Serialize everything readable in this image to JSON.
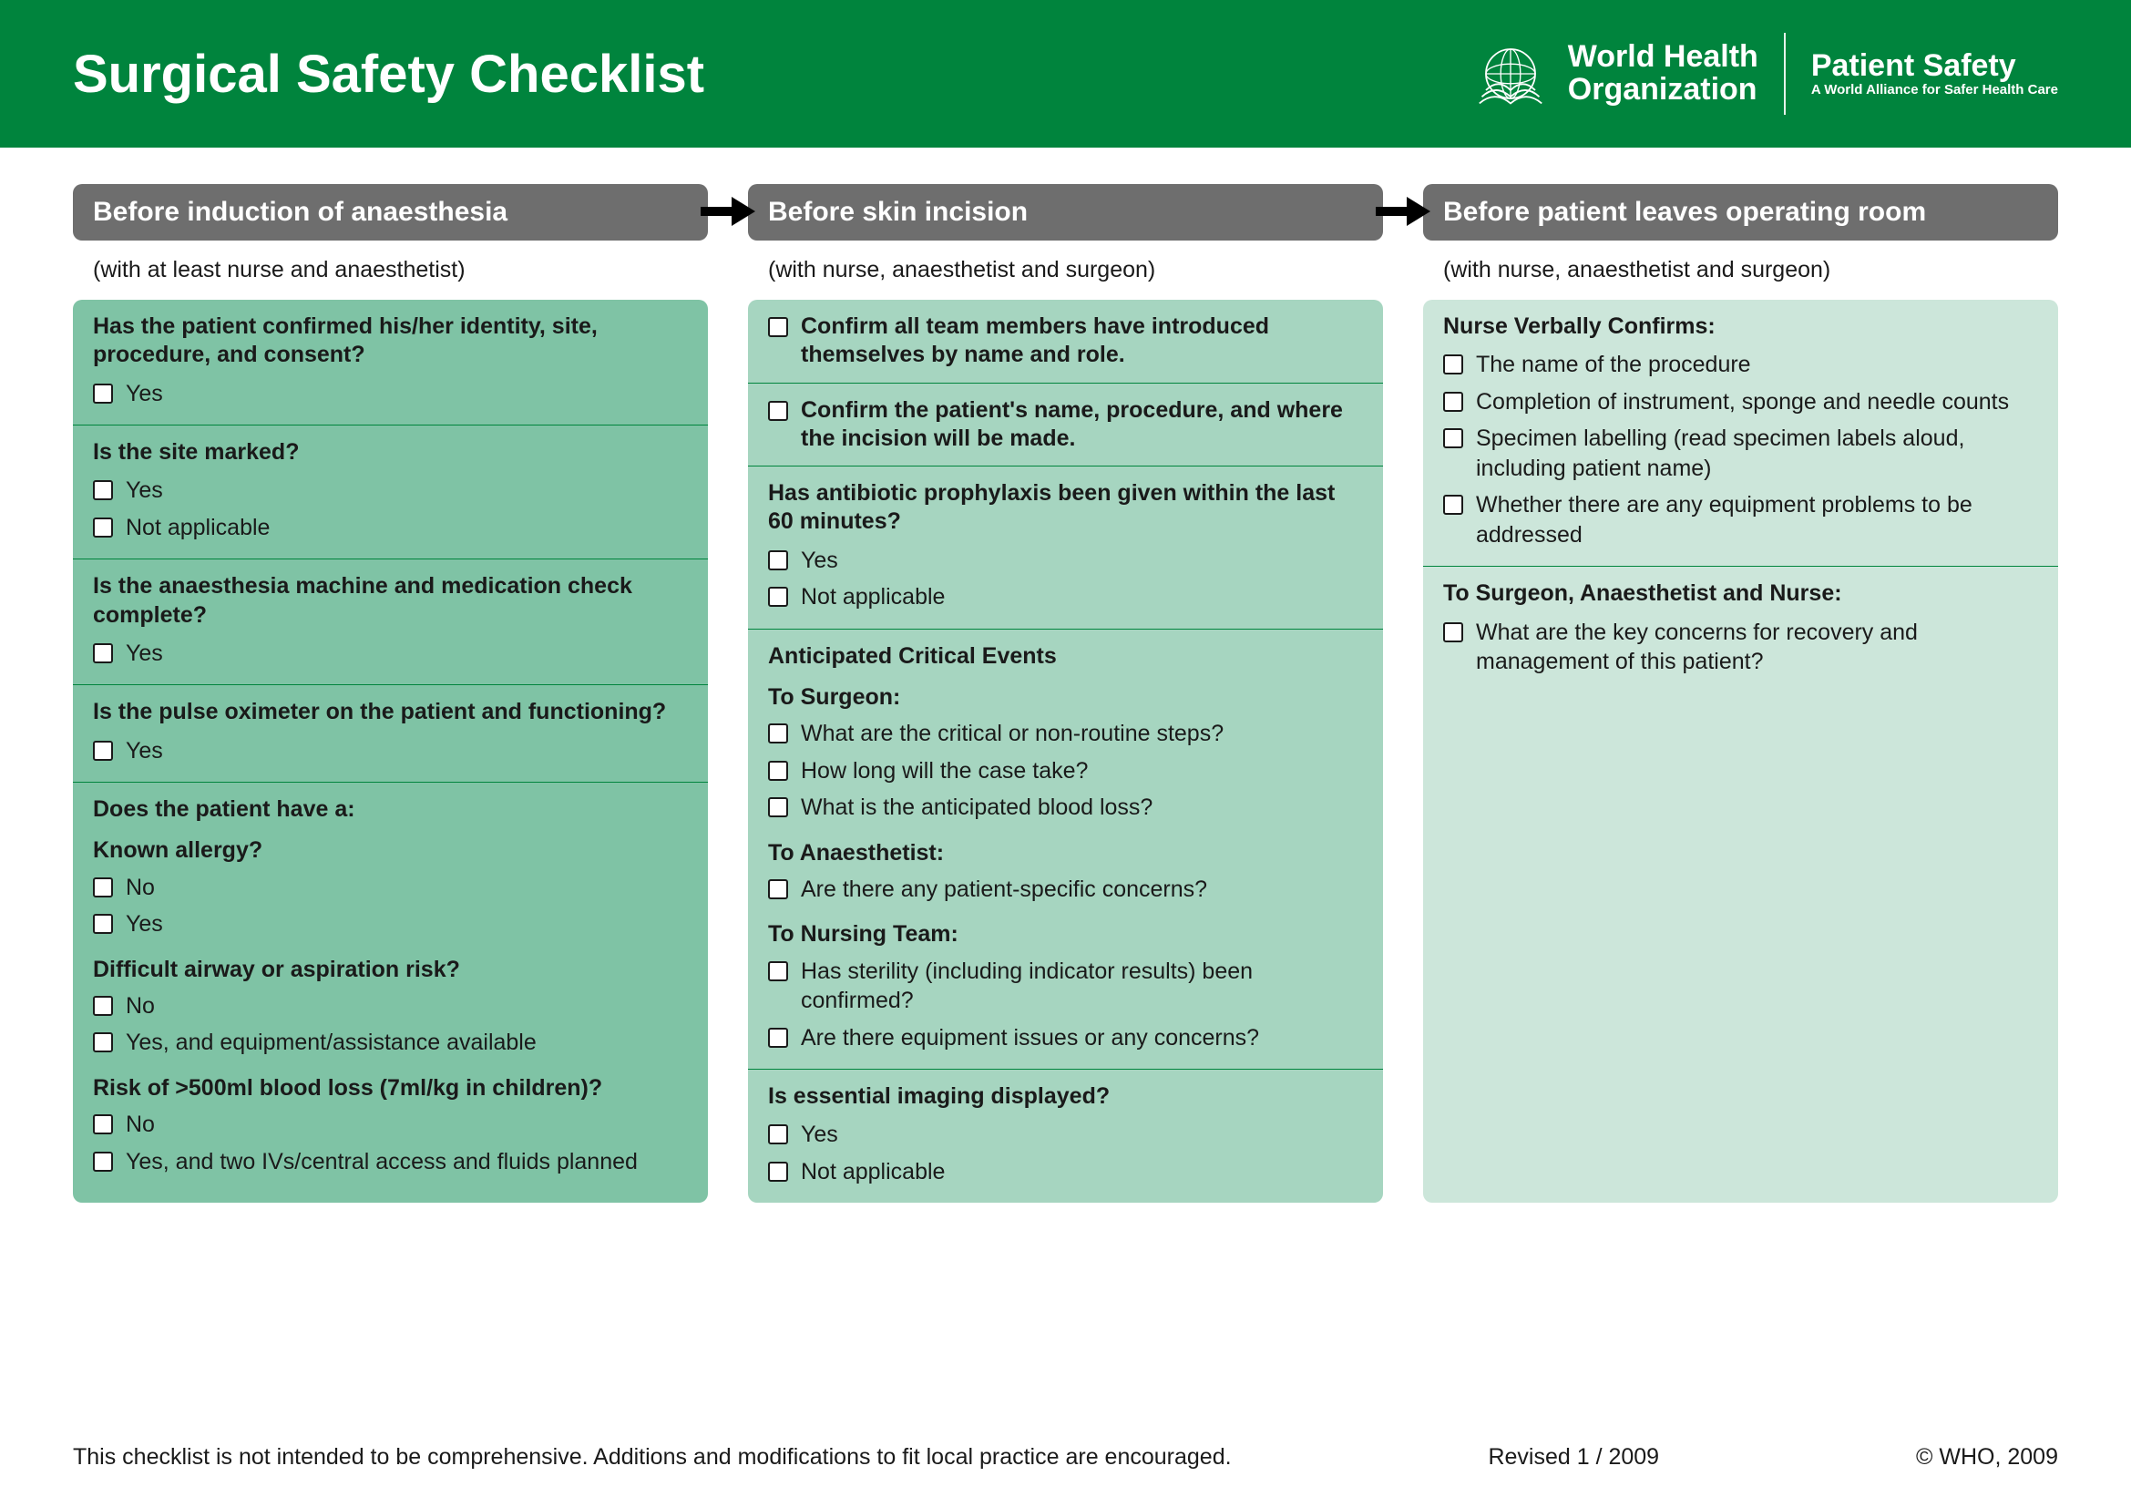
{
  "colors": {
    "brand_green": "#00843d",
    "tab_gray": "#6e6e6e",
    "panel_bg": [
      "#7fc3a5",
      "#a6d5c0",
      "#cce6da"
    ],
    "text": "#1a1a1a",
    "white": "#ffffff"
  },
  "typography": {
    "title_fontsize": 58,
    "tab_fontsize": 30,
    "body_fontsize": 25,
    "footer_fontsize": 25
  },
  "banner": {
    "title": "Surgical Safety Checklist",
    "who_line1": "World Health",
    "who_line2": "Organization",
    "ps_title": "Patient Safety",
    "ps_sub": "A World Alliance for Safer Health Care"
  },
  "phases": [
    {
      "title": "Before induction of anaesthesia",
      "sub": "(with at least nurse and anaesthetist)",
      "sections": [
        {
          "q": "Has the patient confirmed his/her identity, site, procedure, and consent?",
          "opts": [
            "Yes"
          ]
        },
        {
          "q": "Is the site marked?",
          "opts": [
            "Yes",
            "Not applicable"
          ]
        },
        {
          "q": "Is the anaesthesia machine and medication check complete?",
          "opts": [
            "Yes"
          ]
        },
        {
          "q": "Is the pulse oximeter on the patient and functioning?",
          "opts": [
            "Yes"
          ]
        },
        {
          "q": "Does the patient have a:",
          "groups": [
            {
              "sub": "Known allergy?",
              "opts": [
                "No",
                "Yes"
              ]
            },
            {
              "sub": "Difficult airway or aspiration risk?",
              "opts": [
                "No",
                "Yes, and equipment/assistance available"
              ]
            },
            {
              "sub": "Risk of >500ml blood loss (7ml/kg in children)?",
              "opts": [
                "No",
                "Yes, and two IVs/central access and fluids planned"
              ]
            }
          ]
        }
      ]
    },
    {
      "title": "Before skin incision",
      "sub": "(with nurse, anaesthetist and surgeon)",
      "sections": [
        {
          "boxlead": true,
          "q": "Confirm all team members have introduced themselves by name and role."
        },
        {
          "boxlead": true,
          "q": "Confirm the patient's name, procedure, and where the incision will be made."
        },
        {
          "q": "Has antibiotic prophylaxis been given within the last 60 minutes?",
          "opts": [
            "Yes",
            "Not applicable"
          ]
        },
        {
          "q": "Anticipated Critical Events",
          "groups": [
            {
              "sub": "To Surgeon:",
              "opts": [
                "What are the critical or non-routine steps?",
                "How long will the case take?",
                "What is the anticipated blood loss?"
              ]
            },
            {
              "sub": "To Anaesthetist:",
              "opts": [
                "Are there any patient-specific concerns?"
              ]
            },
            {
              "sub": "To Nursing Team:",
              "opts": [
                "Has sterility (including indicator results) been confirmed?",
                "Are there equipment issues or any concerns?"
              ]
            }
          ]
        },
        {
          "q": "Is essential imaging displayed?",
          "opts": [
            "Yes",
            "Not applicable"
          ]
        }
      ]
    },
    {
      "title": "Before patient leaves operating room",
      "sub": "(with nurse, anaesthetist and surgeon)",
      "sections": [
        {
          "q": "Nurse Verbally Confirms:",
          "opts": [
            "The name of the procedure",
            "Completion of instrument, sponge and needle counts",
            "Specimen labelling (read specimen labels aloud, including patient name)",
            "Whether there are any equipment problems to be addressed"
          ]
        },
        {
          "q": "To Surgeon, Anaesthetist and Nurse:",
          "opts": [
            "What are the key concerns for recovery and management of this patient?"
          ]
        }
      ]
    }
  ],
  "footer": {
    "note": "This checklist is not intended to be comprehensive. Additions and modifications to fit local practice are encouraged.",
    "revised": "Revised 1 / 2009",
    "copyright": "© WHO, 2009"
  }
}
